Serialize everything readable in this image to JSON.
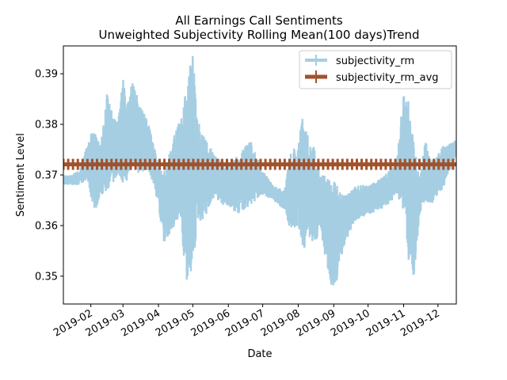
{
  "chart_data": {
    "type": "line",
    "title": "All Earnings Call Sentiments",
    "subtitle": "Unweighted Subjectivity Rolling Mean(100 days)Trend",
    "xlabel": "Date",
    "ylabel": "Sentiment Level",
    "x_type": "date",
    "xlim": [
      "2019-01-08",
      "2019-12-17"
    ],
    "ylim": [
      0.3445,
      0.3955
    ],
    "x_ticks": [
      "2019-02",
      "2019-03",
      "2019-04",
      "2019-05",
      "2019-06",
      "2019-07",
      "2019-08",
      "2019-09",
      "2019-10",
      "2019-11",
      "2019-12"
    ],
    "x_tick_dates": [
      "2019-02-01",
      "2019-03-01",
      "2019-04-01",
      "2019-05-01",
      "2019-06-01",
      "2019-07-01",
      "2019-08-01",
      "2019-09-01",
      "2019-10-01",
      "2019-11-01",
      "2019-12-01"
    ],
    "y_ticks": [
      0.35,
      0.36,
      0.37,
      0.38,
      0.39
    ],
    "grid": false,
    "legend_position": "top-right",
    "series": [
      {
        "name": "subjectivity_rm",
        "color": "#a6cee3",
        "style": "band",
        "x": [
          "2019-01-08",
          "2019-01-15",
          "2019-01-22",
          "2019-01-29",
          "2019-02-01",
          "2019-02-05",
          "2019-02-10",
          "2019-02-15",
          "2019-02-20",
          "2019-02-25",
          "2019-03-01",
          "2019-03-05",
          "2019-03-10",
          "2019-03-15",
          "2019-03-20",
          "2019-03-25",
          "2019-04-01",
          "2019-04-05",
          "2019-04-10",
          "2019-04-15",
          "2019-04-20",
          "2019-04-25",
          "2019-05-01",
          "2019-05-05",
          "2019-05-10",
          "2019-05-15",
          "2019-05-20",
          "2019-05-25",
          "2019-06-01",
          "2019-06-10",
          "2019-06-20",
          "2019-07-01",
          "2019-07-10",
          "2019-07-20",
          "2019-07-25",
          "2019-08-01",
          "2019-08-05",
          "2019-08-10",
          "2019-08-15",
          "2019-08-20",
          "2019-08-25",
          "2019-09-01",
          "2019-09-10",
          "2019-09-20",
          "2019-10-01",
          "2019-10-10",
          "2019-10-20",
          "2019-10-25",
          "2019-11-01",
          "2019-11-05",
          "2019-11-10",
          "2019-11-15",
          "2019-11-20",
          "2019-11-25",
          "2019-12-01",
          "2019-12-05",
          "2019-12-10",
          "2019-12-17"
        ],
        "low": [
          0.368,
          0.368,
          0.368,
          0.369,
          0.365,
          0.363,
          0.366,
          0.367,
          0.368,
          0.37,
          0.367,
          0.369,
          0.372,
          0.37,
          0.371,
          0.37,
          0.364,
          0.356,
          0.358,
          0.36,
          0.362,
          0.346,
          0.351,
          0.36,
          0.361,
          0.363,
          0.366,
          0.364,
          0.364,
          0.362,
          0.364,
          0.366,
          0.365,
          0.363,
          0.359,
          0.36,
          0.354,
          0.358,
          0.355,
          0.36,
          0.353,
          0.346,
          0.356,
          0.361,
          0.362,
          0.363,
          0.364,
          0.366,
          0.363,
          0.352,
          0.35,
          0.362,
          0.365,
          0.364,
          0.366,
          0.367,
          0.37,
          0.374
        ],
        "high": [
          0.37,
          0.37,
          0.371,
          0.376,
          0.379,
          0.378,
          0.377,
          0.386,
          0.382,
          0.381,
          0.389,
          0.385,
          0.389,
          0.384,
          0.382,
          0.379,
          0.372,
          0.37,
          0.374,
          0.378,
          0.381,
          0.389,
          0.394,
          0.381,
          0.378,
          0.376,
          0.374,
          0.373,
          0.372,
          0.374,
          0.377,
          0.371,
          0.368,
          0.367,
          0.374,
          0.377,
          0.382,
          0.378,
          0.376,
          0.371,
          0.37,
          0.369,
          0.366,
          0.368,
          0.368,
          0.369,
          0.371,
          0.372,
          0.386,
          0.385,
          0.376,
          0.37,
          0.377,
          0.373,
          0.374,
          0.376,
          0.376,
          0.377
        ]
      },
      {
        "name": "subjectivity_rm_avg",
        "color": "#a0522d",
        "value": 0.3721
      }
    ]
  }
}
